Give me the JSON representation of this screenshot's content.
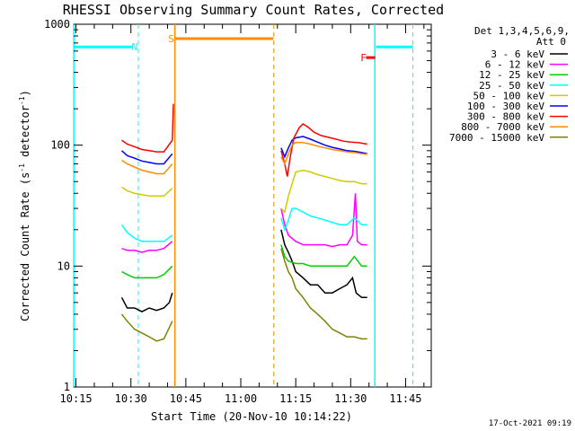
{
  "chart_data": {
    "type": "line",
    "title": "RHESSI Observing Summary Count Rates, Corrected",
    "xlabel": "Start Time (20-Nov-10 10:14:22)",
    "ylabel_main": "Corrected Count Rate (s",
    "ylabel_sup1": "-1",
    "ylabel_mid": " detector",
    "ylabel_sup2": "-1",
    "ylabel_end": ")",
    "yscale": "log",
    "ylim": [
      1,
      1000
    ],
    "x_range_minutes": [
      "10:14:22",
      "11:52:00"
    ],
    "x_tick_labels": [
      "10:15",
      "10:30",
      "10:45",
      "11:00",
      "11:15",
      "11:30",
      "11:45"
    ],
    "x_tick_minutes": [
      15,
      30,
      45,
      60,
      75,
      90,
      105
    ],
    "y_tick_labels": [
      "1",
      "10",
      "100",
      "1000"
    ],
    "y_tick_values": [
      1,
      10,
      100,
      1000
    ],
    "grid": false,
    "legend_position": "right",
    "legend_header": [
      "Det 1,3,4,5,6,9,",
      "Att 0"
    ],
    "series": [
      {
        "name": "3 - 6 keV",
        "color": "#000000",
        "values": [
          [
            27.5,
            5.5
          ],
          [
            29,
            4.5
          ],
          [
            31,
            4.5
          ],
          [
            33,
            4.2
          ],
          [
            35,
            4.5
          ],
          [
            37,
            4.3
          ],
          [
            39,
            4.5
          ],
          [
            40.5,
            5.0
          ],
          [
            41.3,
            6.0
          ],
          [
            71,
            20
          ],
          [
            72,
            15
          ],
          [
            73,
            13
          ],
          [
            74,
            11
          ],
          [
            75,
            9
          ],
          [
            77,
            8
          ],
          [
            79,
            7
          ],
          [
            81,
            7
          ],
          [
            83,
            6
          ],
          [
            85,
            6
          ],
          [
            87,
            6.5
          ],
          [
            89,
            7
          ],
          [
            90.5,
            8
          ],
          [
            91.5,
            6
          ],
          [
            93,
            5.5
          ],
          [
            94.5,
            5.5
          ]
        ]
      },
      {
        "name": "6 - 12 keV",
        "color": "#ff00ff",
        "values": [
          [
            27.5,
            14
          ],
          [
            29,
            13.5
          ],
          [
            31,
            13.5
          ],
          [
            33,
            13
          ],
          [
            35,
            13.5
          ],
          [
            37,
            13.5
          ],
          [
            39,
            14
          ],
          [
            41.3,
            16
          ],
          [
            71,
            30
          ],
          [
            72,
            22
          ],
          [
            73,
            18
          ],
          [
            75,
            16
          ],
          [
            77,
            15
          ],
          [
            79,
            15
          ],
          [
            81,
            15
          ],
          [
            83,
            15
          ],
          [
            85,
            14.5
          ],
          [
            87,
            15
          ],
          [
            89,
            15
          ],
          [
            90.5,
            18
          ],
          [
            91.3,
            40
          ],
          [
            91.8,
            16
          ],
          [
            93,
            15
          ],
          [
            94.5,
            15
          ]
        ]
      },
      {
        "name": "12 - 25 keV",
        "color": "#00cc00",
        "values": [
          [
            27.5,
            9
          ],
          [
            29,
            8.5
          ],
          [
            31,
            8
          ],
          [
            33,
            8
          ],
          [
            35,
            8
          ],
          [
            37,
            8
          ],
          [
            39,
            8.5
          ],
          [
            41.3,
            10
          ],
          [
            71,
            15
          ],
          [
            72,
            12
          ],
          [
            73,
            11
          ],
          [
            75,
            10.5
          ],
          [
            77,
            10.5
          ],
          [
            79,
            10
          ],
          [
            81,
            10
          ],
          [
            83,
            10
          ],
          [
            85,
            10
          ],
          [
            87,
            10
          ],
          [
            89,
            10
          ],
          [
            91,
            12
          ],
          [
            93,
            10
          ],
          [
            94.5,
            10
          ]
        ]
      },
      {
        "name": "25 - 50 keV",
        "color": "#00ffff",
        "values": [
          [
            27.5,
            22
          ],
          [
            29,
            19
          ],
          [
            31,
            17
          ],
          [
            33,
            16
          ],
          [
            35,
            16
          ],
          [
            37,
            16
          ],
          [
            39,
            16
          ],
          [
            41.3,
            18
          ],
          [
            71,
            25
          ],
          [
            72,
            20
          ],
          [
            73,
            24
          ],
          [
            74,
            30
          ],
          [
            75,
            30
          ],
          [
            77,
            28
          ],
          [
            79,
            26
          ],
          [
            81,
            25
          ],
          [
            83,
            24
          ],
          [
            85,
            23
          ],
          [
            87,
            22
          ],
          [
            89,
            22
          ],
          [
            91,
            25
          ],
          [
            93,
            22
          ],
          [
            94.5,
            22
          ]
        ]
      },
      {
        "name": "50 - 100 keV",
        "color": "#cccc00",
        "values": [
          [
            27.5,
            45
          ],
          [
            29,
            42
          ],
          [
            31,
            40
          ],
          [
            33,
            39
          ],
          [
            35,
            38
          ],
          [
            37,
            38
          ],
          [
            39,
            38
          ],
          [
            41.3,
            44
          ],
          [
            71,
            30
          ],
          [
            72,
            28
          ],
          [
            73,
            38
          ],
          [
            74,
            48
          ],
          [
            75,
            60
          ],
          [
            77,
            62
          ],
          [
            79,
            60
          ],
          [
            81,
            57
          ],
          [
            83,
            55
          ],
          [
            85,
            53
          ],
          [
            87,
            51
          ],
          [
            89,
            50
          ],
          [
            91,
            50
          ],
          [
            93,
            48
          ],
          [
            94.5,
            48
          ]
        ]
      },
      {
        "name": "100 - 300 keV",
        "color": "#0000ff",
        "values": [
          [
            27.5,
            90
          ],
          [
            29,
            82
          ],
          [
            31,
            78
          ],
          [
            33,
            74
          ],
          [
            35,
            72
          ],
          [
            37,
            70
          ],
          [
            39,
            70
          ],
          [
            41.3,
            85
          ],
          [
            71,
            95
          ],
          [
            72,
            80
          ],
          [
            73,
            95
          ],
          [
            74,
            110
          ],
          [
            75,
            115
          ],
          [
            77,
            118
          ],
          [
            79,
            112
          ],
          [
            81,
            106
          ],
          [
            83,
            100
          ],
          [
            85,
            96
          ],
          [
            87,
            93
          ],
          [
            89,
            90
          ],
          [
            91,
            89
          ],
          [
            93,
            87
          ],
          [
            94.5,
            85
          ]
        ]
      },
      {
        "name": "300 - 800 keV",
        "color": "#ff0000",
        "values": [
          [
            27.5,
            110
          ],
          [
            29,
            102
          ],
          [
            31,
            97
          ],
          [
            33,
            92
          ],
          [
            35,
            90
          ],
          [
            37,
            88
          ],
          [
            39,
            88
          ],
          [
            41.3,
            110
          ],
          [
            41.6,
            220
          ],
          [
            71,
            90
          ],
          [
            72,
            70
          ],
          [
            72.7,
            55
          ],
          [
            73.5,
            80
          ],
          [
            74.5,
            115
          ],
          [
            76,
            140
          ],
          [
            77,
            150
          ],
          [
            78.5,
            140
          ],
          [
            80,
            128
          ],
          [
            82,
            120
          ],
          [
            84,
            116
          ],
          [
            86,
            112
          ],
          [
            88,
            108
          ],
          [
            90,
            106
          ],
          [
            92,
            105
          ],
          [
            94.5,
            102
          ]
        ]
      },
      {
        "name": "800 - 7000 keV",
        "color": "#ff8c00",
        "values": [
          [
            27.5,
            75
          ],
          [
            29,
            70
          ],
          [
            31,
            66
          ],
          [
            33,
            62
          ],
          [
            35,
            60
          ],
          [
            37,
            58
          ],
          [
            39,
            58
          ],
          [
            41.3,
            70
          ],
          [
            71,
            80
          ],
          [
            72,
            70
          ],
          [
            73,
            85
          ],
          [
            74,
            100
          ],
          [
            75,
            105
          ],
          [
            77,
            105
          ],
          [
            79,
            102
          ],
          [
            81,
            98
          ],
          [
            83,
            95
          ],
          [
            85,
            92
          ],
          [
            87,
            90
          ],
          [
            89,
            88
          ],
          [
            91,
            87
          ],
          [
            93,
            85
          ],
          [
            94.5,
            84
          ]
        ]
      },
      {
        "name": "7000 - 15000 keV",
        "color": "#808000",
        "values": [
          [
            27.5,
            4
          ],
          [
            29,
            3.5
          ],
          [
            31,
            3
          ],
          [
            33,
            2.8
          ],
          [
            35,
            2.6
          ],
          [
            37,
            2.4
          ],
          [
            39,
            2.5
          ],
          [
            41.3,
            3.5
          ],
          [
            71,
            14
          ],
          [
            72,
            11
          ],
          [
            73,
            9
          ],
          [
            74,
            8
          ],
          [
            75,
            6.5
          ],
          [
            77,
            5.5
          ],
          [
            79,
            4.5
          ],
          [
            81,
            4
          ],
          [
            83,
            3.5
          ],
          [
            85,
            3
          ],
          [
            87,
            2.8
          ],
          [
            89,
            2.6
          ],
          [
            91,
            2.6
          ],
          [
            93,
            2.5
          ],
          [
            94.5,
            2.5
          ]
        ]
      }
    ],
    "annotations": [
      {
        "label": "N",
        "color": "#00ffff",
        "x": 31,
        "y": 650
      },
      {
        "label": "S",
        "color": "#ff8c00",
        "x": 41,
        "y": 760
      },
      {
        "label": "F",
        "color": "#ff0000",
        "x": 93.5,
        "y": 530
      }
    ],
    "state_bars": [
      {
        "color": "#00ffff",
        "x0": 14.4,
        "x1": 30.5,
        "y": 650
      },
      {
        "color": "#ff8c00",
        "x0": 42.2,
        "x1": 68.9,
        "y": 760
      },
      {
        "color": "#ff0000",
        "x0": 94.2,
        "x1": 96.7,
        "y": 530
      },
      {
        "color": "#00ffff",
        "x0": 96.9,
        "x1": 107.0,
        "y": 650
      }
    ],
    "cyan_lines": [
      14.4,
      96.6
    ],
    "cyan_dashed_lines": [
      32.0,
      107.0
    ],
    "orange_lines": [
      42.0
    ],
    "orange_dashed_lines": [
      69.0
    ],
    "timestamp": "17-Oct-2021 09:19"
  }
}
